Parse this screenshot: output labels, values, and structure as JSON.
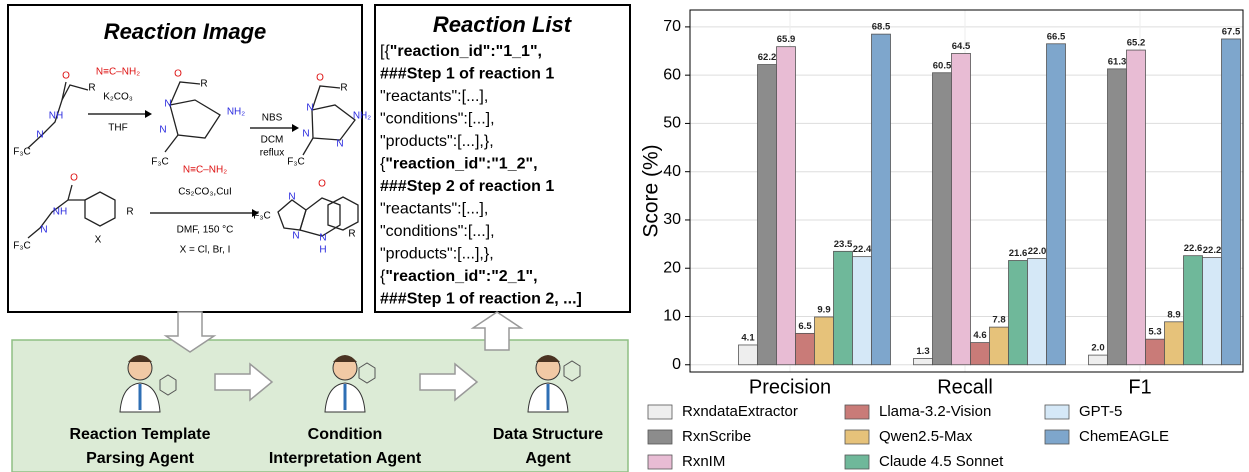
{
  "chart_data": {
    "type": "bar",
    "y_label": "Score (%)",
    "categories": [
      "Precision",
      "Recall",
      "F1"
    ],
    "ylim": [
      -1.5,
      73.5
    ],
    "yticks": [
      0,
      10,
      20,
      30,
      40,
      50,
      60,
      70
    ],
    "grid": true,
    "series": [
      {
        "name": "RxndataExtractor",
        "color": "#eeeeee",
        "values": [
          4.1,
          1.3,
          2.0
        ],
        "value_labels": [
          "4.1",
          "1.3",
          "2.0"
        ]
      },
      {
        "name": "RxnScribe",
        "color": "#8c8c8c",
        "values": [
          62.2,
          60.5,
          61.3
        ],
        "value_labels": [
          "62.2",
          "60.5",
          "61.3"
        ]
      },
      {
        "name": "RxnIM",
        "color": "#e8bcd4",
        "values": [
          65.9,
          64.5,
          65.2
        ],
        "value_labels": [
          "65.9",
          "64.5",
          "65.2"
        ]
      },
      {
        "name": "Llama-3.2-Vision",
        "color": "#c97b78",
        "values": [
          6.5,
          4.6,
          5.3
        ],
        "value_labels": [
          "6.5",
          "4.6",
          "5.3"
        ]
      },
      {
        "name": "Qwen2.5-Max",
        "color": "#e6c27a",
        "values": [
          9.9,
          7.8,
          8.9
        ],
        "value_labels": [
          "9.9",
          "7.8",
          "8.9"
        ]
      },
      {
        "name": "Claude 4.5 Sonnet",
        "color": "#6fb89a",
        "values": [
          23.5,
          21.6,
          22.6
        ],
        "value_labels": [
          "23.5",
          "21.6",
          "22.6"
        ]
      },
      {
        "name": "GPT-5",
        "color": "#d5e8f7",
        "values": [
          22.4,
          22.0,
          22.2
        ],
        "value_labels": [
          "22.4",
          "22.0",
          "22.2"
        ]
      },
      {
        "name": "ChemEAGLE",
        "color": "#7ea6cc",
        "values": [
          68.5,
          66.5,
          67.5
        ],
        "value_labels": [
          "68.5",
          "66.5",
          "67.5"
        ]
      }
    ]
  },
  "diagram": {
    "reaction_image": {
      "title": "Reaction Image",
      "reagents": [
        "N≡C–NH₂",
        "K₂CO₃",
        "THF",
        "NBS",
        "DCM",
        "reflux",
        "N≡C–NH₂",
        "Cs₂CO₃,CuI",
        "DMF, 150 °C",
        "X = Cl, Br, I"
      ],
      "atoms": [
        "O",
        "R",
        "NH",
        "N",
        "F₃C",
        "O",
        "R",
        "N",
        "N",
        "NH₂",
        "F₃C",
        "O",
        "R",
        "N",
        "N",
        "N",
        "NH₂",
        "F₃C",
        "O",
        "NH",
        "N",
        "X",
        "R",
        "F₃C",
        "O",
        "F₃C",
        "N",
        "N",
        "N",
        "H",
        "R"
      ]
    },
    "reaction_list": {
      "title": "Reaction List",
      "lines": [
        [
          {
            "text": "[{"
          },
          {
            "text": "\"reaction_id\":\"1_1\",",
            "bold": true
          }
        ],
        [
          {
            "text": "###Step 1 of reaction 1",
            "bold": true
          }
        ],
        [
          {
            "text": "\"reactants\":[...],"
          }
        ],
        [
          {
            "text": "\"conditions\":[...],"
          }
        ],
        [
          {
            "text": "\"products\":[...],},"
          }
        ],
        [
          {
            "text": "{"
          },
          {
            "text": "\"reaction_id\":\"1_2\",",
            "bold": true
          }
        ],
        [
          {
            "text": "###Step 2 of reaction 1",
            "bold": true
          }
        ],
        [
          {
            "text": "\"reactants\":[...],"
          }
        ],
        [
          {
            "text": "\"conditions\":[...],"
          }
        ],
        [
          {
            "text": "\"products\":[...],},"
          }
        ],
        [
          {
            "text": "{"
          },
          {
            "text": "\"reaction_id\":\"2_1\",",
            "bold": true
          }
        ],
        [
          {
            "text": "###Step 1 of reaction 2, ...]",
            "bold": true
          }
        ]
      ]
    },
    "agents": [
      {
        "lines": [
          "Reaction Template",
          "Parsing Agent"
        ]
      },
      {
        "lines": [
          "Condition",
          "Interpretation Agent"
        ]
      },
      {
        "lines": [
          "Data Structure",
          "Agent"
        ]
      }
    ]
  }
}
